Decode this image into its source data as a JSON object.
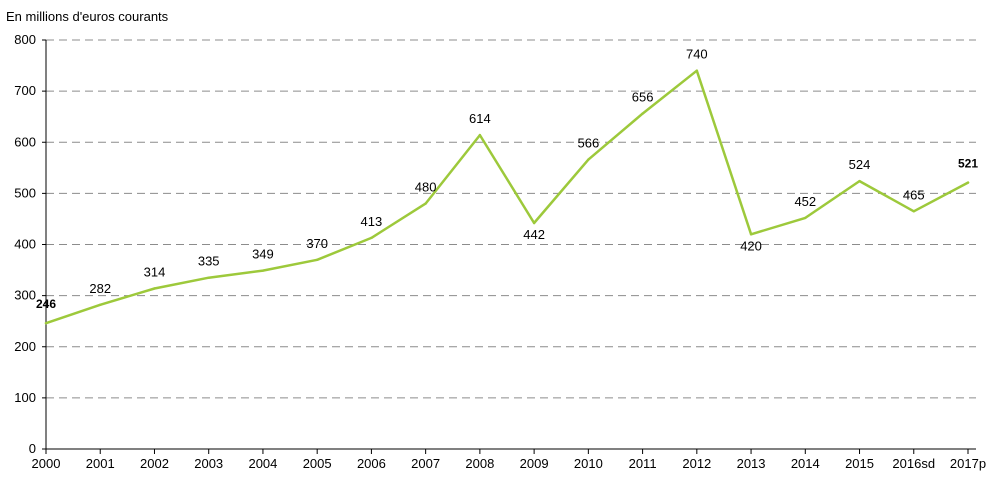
{
  "chart_data": {
    "type": "line",
    "unit_label": "En millions d'euros courants",
    "title": "",
    "xlabel": "",
    "ylabel": "",
    "categories": [
      "2000",
      "2001",
      "2002",
      "2003",
      "2004",
      "2005",
      "2006",
      "2007",
      "2008",
      "2009",
      "2010",
      "2011",
      "2012",
      "2013",
      "2014",
      "2015",
      "2016sd",
      "2017p"
    ],
    "series": [
      {
        "values": [
          246,
          282,
          314,
          335,
          349,
          370,
          413,
          480,
          614,
          442,
          566,
          656,
          740,
          420,
          452,
          524,
          465,
          521
        ],
        "data_labels": [
          "246",
          "282",
          "314",
          "335",
          "349",
          "370",
          "413",
          "480",
          "614",
          "442",
          "566",
          "656",
          "740",
          "420",
          "452",
          "524",
          "465",
          "521"
        ],
        "bold_labels": [
          "2000",
          "2017p"
        ],
        "color": "#9dc93b"
      }
    ],
    "ylim": [
      0,
      800
    ],
    "yticks": [
      0,
      100,
      200,
      300,
      400,
      500,
      600,
      700,
      800
    ],
    "ytick_labels": [
      "0",
      "100",
      "200",
      "300",
      "400",
      "500",
      "600",
      "700",
      "800"
    ],
    "grid": true,
    "grid_style": "dashed horizontal",
    "legend": "none"
  }
}
